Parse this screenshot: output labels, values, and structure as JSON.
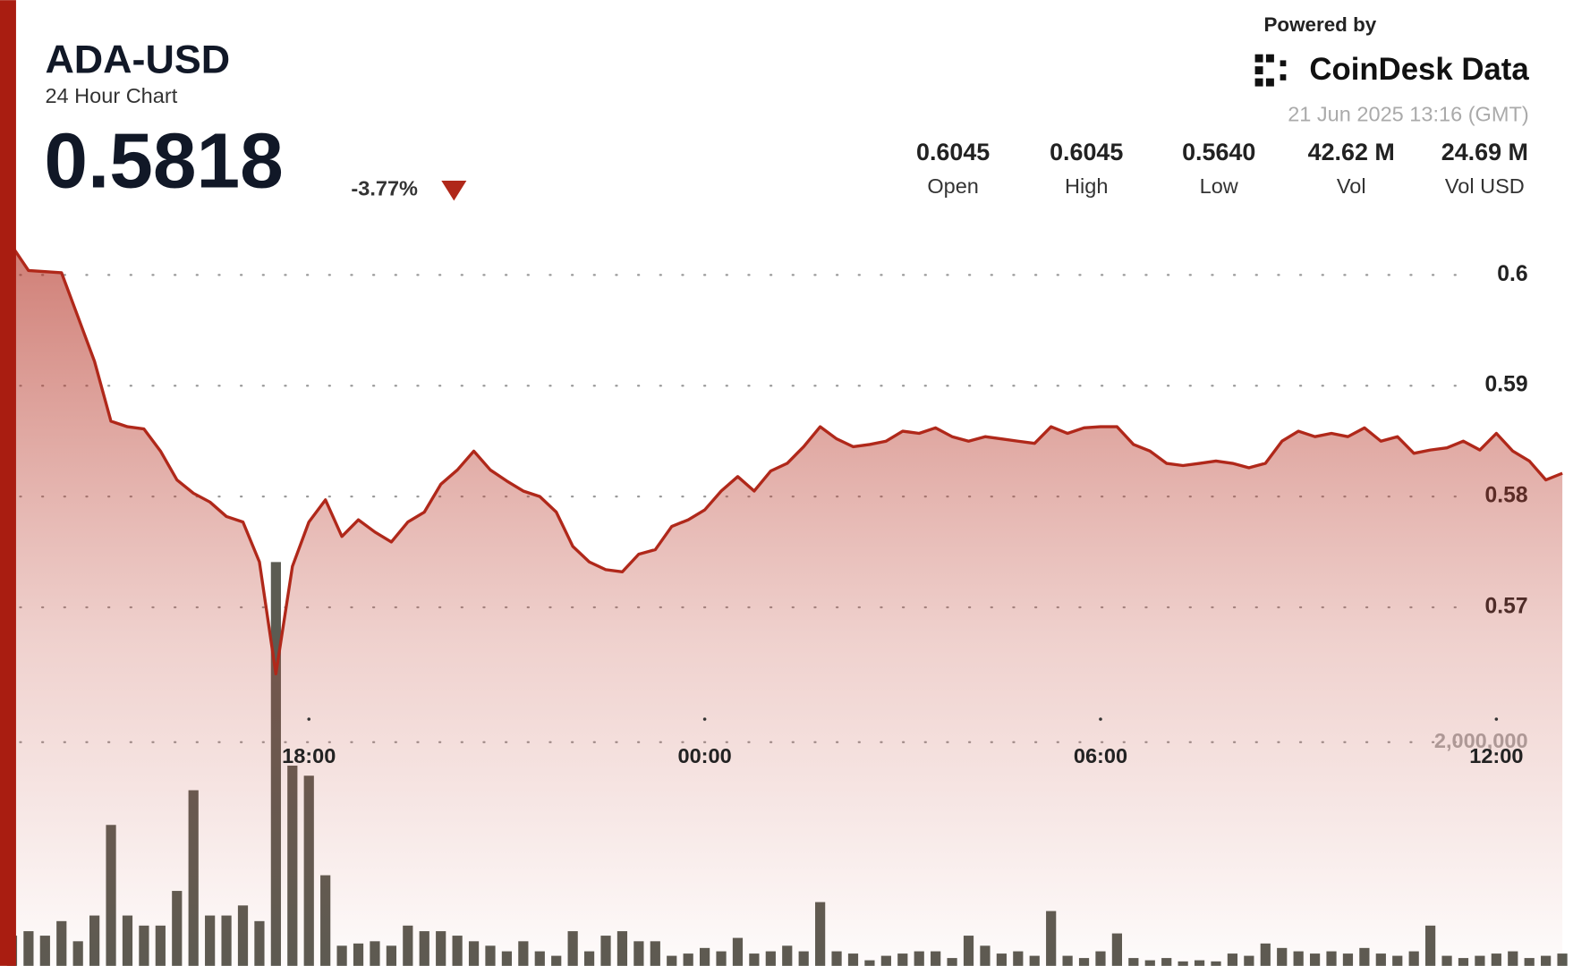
{
  "chart_data": {
    "type": "line",
    "title": "ADA-USD",
    "subtitle": "24 Hour Chart",
    "price": "0.5818",
    "change": "-3.77%",
    "stats": [
      {
        "value": "0.6045",
        "label": "Open"
      },
      {
        "value": "0.6045",
        "label": "High"
      },
      {
        "value": "0.5640",
        "label": "Low"
      },
      {
        "value": "42.62 M",
        "label": "Vol"
      },
      {
        "value": "24.69 M",
        "label": "Vol USD"
      }
    ],
    "powered_by": "Powered by",
    "brand": "CoinDesk Data",
    "timestamp": "21 Jun 2025 13:16 (GMT)",
    "x": [
      "13:30",
      "13:45",
      "14:00",
      "14:15",
      "14:30",
      "14:45",
      "15:00",
      "15:15",
      "15:30",
      "15:45",
      "16:00",
      "16:15",
      "16:30",
      "16:45",
      "17:00",
      "17:15",
      "17:30",
      "17:45",
      "18:00",
      "18:15",
      "18:30",
      "18:45",
      "19:00",
      "19:15",
      "19:30",
      "19:45",
      "20:00",
      "20:15",
      "20:30",
      "20:45",
      "21:00",
      "21:15",
      "21:30",
      "21:45",
      "22:00",
      "22:15",
      "22:30",
      "22:45",
      "23:00",
      "23:15",
      "23:30",
      "23:45",
      "00:00",
      "00:15",
      "00:30",
      "00:45",
      "01:00",
      "01:15",
      "01:30",
      "01:45",
      "02:00",
      "02:15",
      "02:30",
      "02:45",
      "03:00",
      "03:15",
      "03:30",
      "03:45",
      "04:00",
      "04:15",
      "04:30",
      "04:45",
      "05:00",
      "05:15",
      "05:30",
      "05:45",
      "06:00",
      "06:15",
      "06:30",
      "06:45",
      "07:00",
      "07:15",
      "07:30",
      "07:45",
      "08:00",
      "08:15",
      "08:30",
      "08:45",
      "09:00",
      "09:15",
      "09:30",
      "09:45",
      "10:00",
      "10:15",
      "10:30",
      "10:45",
      "11:00",
      "11:15",
      "11:30",
      "11:45",
      "12:00",
      "12:15",
      "12:30",
      "12:45",
      "13:00"
    ],
    "xticks": [
      "18:00",
      "00:00",
      "06:00",
      "12:00"
    ],
    "series": [
      {
        "color": "#b0281a",
        "values": [
          0.6026,
          0.6004,
          0.6003,
          0.6002,
          0.5962,
          0.5922,
          0.5868,
          0.5863,
          0.5861,
          0.5841,
          0.5815,
          0.5803,
          0.5795,
          0.5782,
          0.5777,
          0.5741,
          0.564,
          0.5737,
          0.5777,
          0.5797,
          0.5764,
          0.5779,
          0.5768,
          0.5759,
          0.5777,
          0.5786,
          0.5811,
          0.5824,
          0.5841,
          0.5824,
          0.5814,
          0.5805,
          0.58,
          0.5786,
          0.5755,
          0.5741,
          0.5734,
          0.5732,
          0.5748,
          0.5752,
          0.5773,
          0.5779,
          0.5788,
          0.5805,
          0.5818,
          0.5805,
          0.5823,
          0.583,
          0.5845,
          0.5863,
          0.5852,
          0.5845,
          0.5847,
          0.585,
          0.5859,
          0.5857,
          0.5862,
          0.5854,
          0.585,
          0.5854,
          0.5852,
          0.585,
          0.5848,
          0.5863,
          0.5857,
          0.5862,
          0.5863,
          0.5863,
          0.5847,
          0.5841,
          0.583,
          0.5828,
          0.583,
          0.5832,
          0.583,
          0.5826,
          0.583,
          0.585,
          0.5859,
          0.5854,
          0.5857,
          0.5854,
          0.5862,
          0.585,
          0.5854,
          0.5839,
          0.5842,
          0.5844,
          0.585,
          0.5842,
          0.5857,
          0.5841,
          0.5832,
          0.5815,
          0.5821
        ]
      },
      {
        "type": "bar",
        "axis": "y2",
        "color": "#5b5b52",
        "values": [
          270000,
          310000,
          270000,
          400000,
          220000,
          450000,
          1260000,
          450000,
          360000,
          360000,
          670000,
          1570000,
          450000,
          450000,
          540000,
          400000,
          3610000,
          1790000,
          1700000,
          810000,
          180000,
          200000,
          220000,
          180000,
          360000,
          310000,
          310000,
          270000,
          220000,
          180000,
          130000,
          220000,
          130000,
          90000,
          310000,
          130000,
          270000,
          310000,
          220000,
          220000,
          90000,
          110000,
          160000,
          130000,
          250000,
          110000,
          130000,
          180000,
          130000,
          570000,
          130000,
          110000,
          50000,
          90000,
          110000,
          130000,
          130000,
          70000,
          270000,
          180000,
          110000,
          130000,
          90000,
          490000,
          90000,
          70000,
          130000,
          290000,
          70000,
          50000,
          70000,
          40000,
          50000,
          40000,
          110000,
          90000,
          200000,
          160000,
          130000,
          110000,
          130000,
          110000,
          160000,
          110000,
          90000,
          130000,
          360000,
          90000,
          70000,
          90000,
          110000,
          130000,
          70000,
          90000,
          110000
        ]
      }
    ],
    "ylim": [
      0.56,
      0.605
    ],
    "yticks": [
      0.57,
      0.58,
      0.59,
      0.6
    ],
    "y2lim": [
      0,
      6670000
    ],
    "y2ticks": [
      {
        "value": 2000000,
        "label": "2,000,000"
      }
    ],
    "grid": true
  }
}
